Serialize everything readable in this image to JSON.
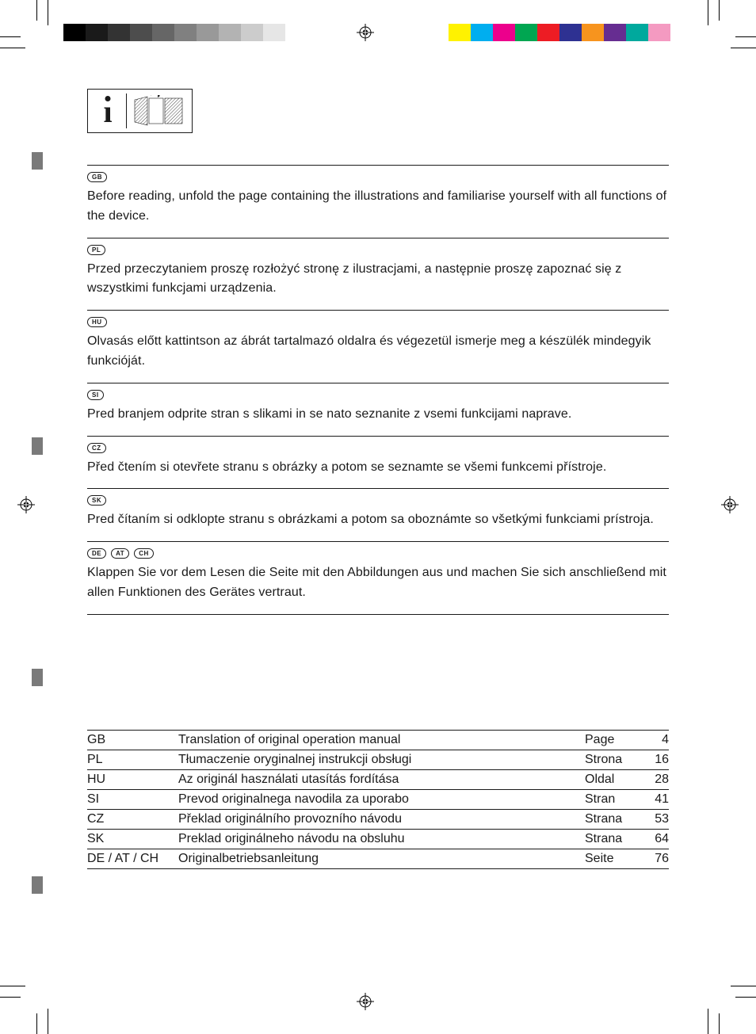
{
  "print_marks": {
    "gray_swatches": [
      "#000000",
      "#1a1a1a",
      "#333333",
      "#4d4d4d",
      "#666666",
      "#808080",
      "#999999",
      "#b3b3b3",
      "#cccccc",
      "#e6e6e6",
      "#ffffff"
    ],
    "color_swatches": [
      "#fff200",
      "#00aeef",
      "#ec008c",
      "#00a651",
      "#ed1c24",
      "#2e3192",
      "#f7941e",
      "#662d91",
      "#00a99d",
      "#f49ac1",
      "#ffffff"
    ]
  },
  "sections": [
    {
      "codes": [
        "GB"
      ],
      "text": "Before reading, unfold the page containing the illustrations and familiarise yourself with all functions of the device."
    },
    {
      "codes": [
        "PL"
      ],
      "text": "Przed przeczytaniem proszę rozłożyć stronę z ilustracjami, a następnie proszę zapoznać się z wszystkimi funkcjami urządzenia."
    },
    {
      "codes": [
        "HU"
      ],
      "text": "Olvasás előtt kattintson az ábrát tartalmazó oldalra és végezetül ismerje meg a készülék mindegyik funkcióját."
    },
    {
      "codes": [
        "SI"
      ],
      "text": "Pred branjem odprite stran s slikami in se nato seznanite z vsemi funkcijami naprave."
    },
    {
      "codes": [
        "CZ"
      ],
      "text": "Před čtením si otevřete stranu s obrázky a potom se seznamte se všemi funkcemi přístroje."
    },
    {
      "codes": [
        "SK"
      ],
      "text": "Pred čítaním si odklopte stranu s obrázkami a potom sa oboznámte so všetkými funkciami prístroja."
    },
    {
      "codes": [
        "DE",
        "AT",
        "CH"
      ],
      "text": "Klappen Sie vor dem Lesen die Seite mit den Abbildungen aus und machen Sie sich anschließend mit allen Funktionen des Gerätes vertraut."
    }
  ],
  "toc": [
    {
      "code": "GB",
      "title": "Translation of original operation manual",
      "page_word": "Page",
      "page": "4"
    },
    {
      "code": "PL",
      "title": "Tłumaczenie oryginalnej instrukcji obsługi",
      "page_word": "Strona",
      "page": "16"
    },
    {
      "code": "HU",
      "title": "Az originál használati utasítás fordítása",
      "page_word": "Oldal",
      "page": "28"
    },
    {
      "code": "SI",
      "title": "Prevod originalnega navodila za uporabo",
      "page_word": "Stran",
      "page": "41"
    },
    {
      "code": "CZ",
      "title": "Překlad originálního provozního návodu",
      "page_word": "Strana",
      "page": "53"
    },
    {
      "code": "SK",
      "title": "Preklad originálneho návodu na obsluhu",
      "page_word": "Strana",
      "page": "64"
    },
    {
      "code": "DE / AT / CH",
      "title": "Originalbetriebsanleitung",
      "page_word": "Seite",
      "page": "76"
    }
  ],
  "side_ticks_y": [
    192,
    552,
    844,
    1106
  ]
}
